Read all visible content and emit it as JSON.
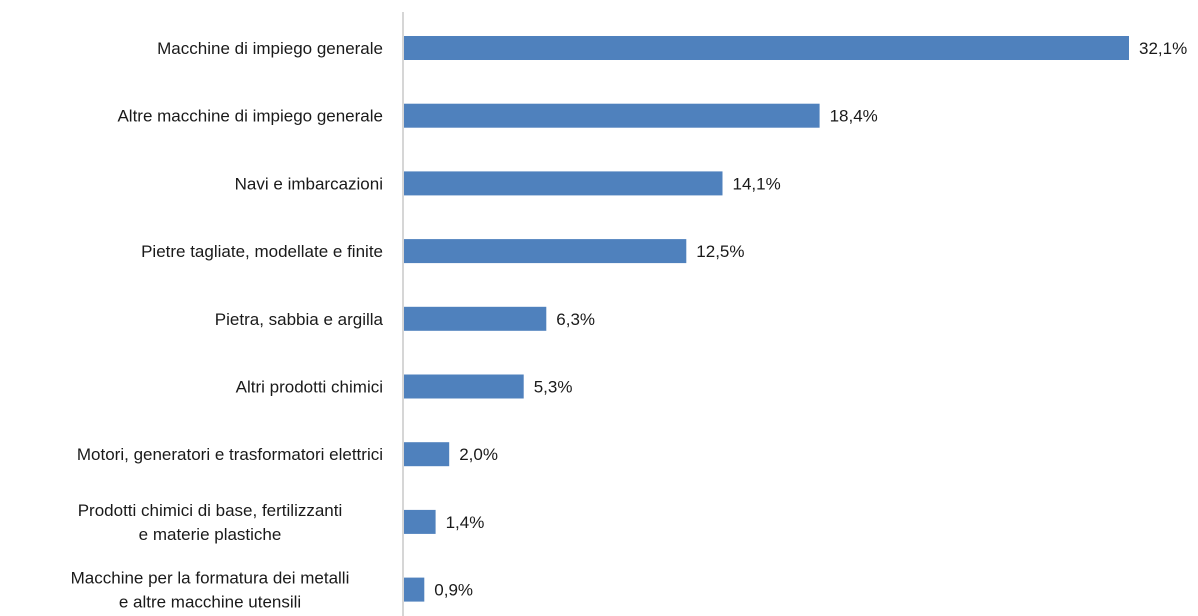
{
  "chart_data": {
    "type": "bar",
    "orientation": "horizontal",
    "categories": [
      "Macchine di impiego generale",
      "Altre macchine di impiego generale",
      "Navi e imbarcazioni",
      "Pietre tagliate, modellate e finite",
      "Pietra, sabbia e argilla",
      "Altri prodotti chimici",
      "Motori, generatori e trasformatori elettrici",
      "Prodotti chimici di base, fertilizzanti e materie plastiche",
      "Macchine per la formatura dei metalli e altre macchine utensili"
    ],
    "category_lines": [
      [
        "Macchine di impiego generale"
      ],
      [
        "Altre macchine di impiego generale"
      ],
      [
        "Navi e imbarcazioni"
      ],
      [
        "Pietre tagliate, modellate e finite"
      ],
      [
        "Pietra, sabbia e argilla"
      ],
      [
        "Altri prodotti chimici"
      ],
      [
        "Motori, generatori e trasformatori elettrici"
      ],
      [
        "Prodotti chimici di base, fertilizzanti",
        "e materie plastiche"
      ],
      [
        "Macchine per la formatura dei metalli",
        "e altre macchine utensili"
      ]
    ],
    "values": [
      32.1,
      18.4,
      14.1,
      12.5,
      6.3,
      5.3,
      2.0,
      1.4,
      0.9
    ],
    "value_labels": [
      "32,1%",
      "18,4%",
      "14,1%",
      "12,5%",
      "6,3%",
      "5,3%",
      "2,0%",
      "1,4%",
      "0,9%"
    ],
    "xlim": [
      0,
      32.1
    ],
    "grid": false,
    "legend": "none",
    "bar_color": "#4f81bd"
  }
}
